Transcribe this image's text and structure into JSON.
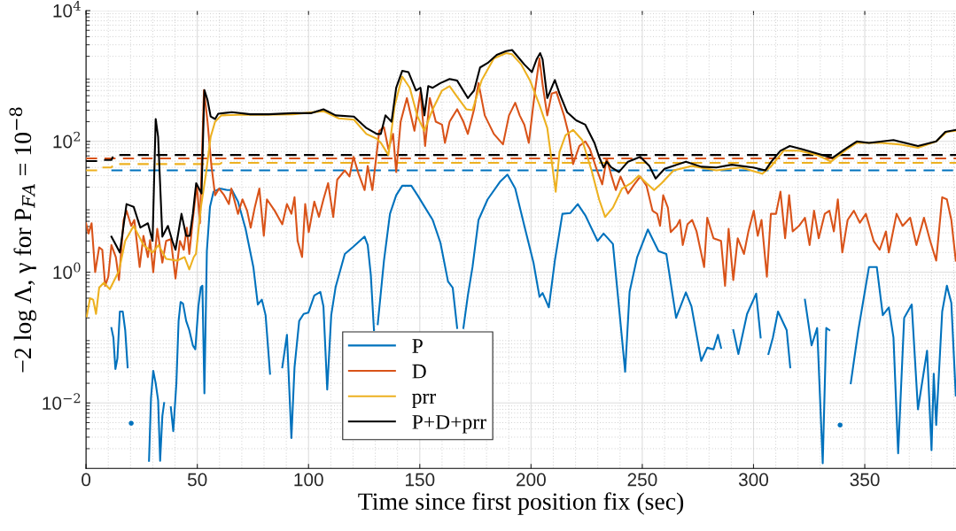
{
  "chart_data": {
    "type": "line",
    "xlabel": "Time since first position fix (sec)",
    "ylabel": "−2 log Λ, γ for P$_{FA}$ = 10$^{−8}$",
    "log": "y",
    "grid": true,
    "legend": "bottom left",
    "line_style": "solid",
    "marker": "none",
    "xlim": [
      0,
      391
    ],
    "xticks": [
      0,
      50,
      100,
      150,
      200,
      250,
      300,
      350
    ],
    "ylim": [
      0.001,
      10000
    ],
    "yticks": [
      {
        "value": 0.01,
        "label": "10$^{−2}$"
      },
      {
        "value": 1,
        "label": "10$^{0}$"
      },
      {
        "value": 100,
        "label": "10$^{2}$"
      },
      {
        "value": 10000,
        "label": "10$^{4}$"
      }
    ],
    "series": [
      {
        "name": "P",
        "color": "#0072bd",
        "x": [
          11.4,
          12.3,
          13.2,
          14.1,
          15.2,
          16.5,
          17.6,
          18.7,
          19.3,
          20.3,
          21.3,
          28.3,
          29.2,
          30.2,
          31.3,
          32.4,
          33.3,
          34.3,
          35.1,
          36.1,
          36.8,
          38.1,
          39.2,
          40.6,
          41.6,
          42.5,
          43.6,
          45,
          46.4,
          48,
          49.1,
          50.5,
          51.6,
          52.3,
          53.2,
          54.3,
          55.7,
          57.3,
          60.1,
          63.5,
          65.6,
          68.3,
          71.7,
          75.2,
          77.2,
          79,
          80.7,
          82.7,
          84.8,
          86.1,
          88.2,
          90.3,
          92.3,
          93.7,
          95.8,
          97.8,
          99.9,
          102.6,
          105.3,
          106.7,
          108.4,
          110.2,
          112.2,
          116.3,
          119.8,
          125.2,
          126.6,
          128,
          129.4,
          130.5,
          131.1,
          133.9,
          136.6,
          139.4,
          142.1,
          146.2,
          149,
          152.4,
          155.8,
          159.3,
          162.7,
          164.8,
          166.8,
          168.2,
          169.6,
          171.6,
          173.7,
          176.4,
          180.5,
          186,
          189.4,
          192.9,
          197,
          201.1,
          203.8,
          205.2,
          208,
          210.7,
          214.1,
          217.6,
          221,
          224.4,
          229.9,
          232.6,
          236.8,
          239.5,
          242.3,
          244.3,
          247.7,
          252.5,
          257.3,
          260.8,
          265.2,
          269.6,
          272.1,
          276.5,
          279.2,
          282,
          284,
          285.4,
          287.7,
          289.5,
          290.9,
          293.2,
          297.1,
          301.2,
          303.2,
          305,
          306.7,
          308.7,
          311,
          314.9,
          316.5,
          318.3,
          320.4,
          323.1,
          326.1,
          328.6,
          331.1,
          332.7,
          334.1,
          336.8,
          338.9,
          341.6,
          343.7,
          347.1,
          351.9,
          355.4,
          358.1,
          360.8,
          362.9,
          365,
          367.7,
          371.1,
          373.9,
          378,
          380,
          381,
          382.1,
          384.8,
          386.9,
          388.9,
          390.9
        ],
        "values": [
          0.14,
          0.1,
          0.033,
          0.048,
          0.25,
          0.25,
          0.13,
          0.035,
          null,
          0.0049,
          null,
          0.0013,
          0.012,
          0.031,
          0.02,
          0.011,
          0.0013,
          0.0063,
          0.01,
          null,
          null,
          0.0086,
          0.0037,
          0.02,
          0.18,
          0.35,
          0.33,
          0.18,
          0.13,
          0.076,
          0.066,
          0.3,
          0.59,
          0.62,
          0.014,
          2.1,
          10,
          17,
          19,
          18,
          18,
          12,
          4.6,
          1.2,
          0.32,
          0.38,
          0.22,
          0.028,
          null,
          null,
          0.035,
          0.11,
          0.0029,
          0.035,
          0.18,
          0.23,
          0.24,
          0.44,
          0.5,
          0.3,
          0.016,
          0.22,
          0.6,
          1.9,
          2.4,
          3.5,
          2.6,
          0.9,
          0.13,
          null,
          0.16,
          1.5,
          7.8,
          15,
          21,
          21,
          15,
          9.7,
          6.3,
          2.8,
          0.72,
          0.58,
          0.14,
          null,
          0.14,
          0.44,
          1.2,
          6.3,
          13,
          24,
          31,
          19,
          5.1,
          1.4,
          0.42,
          0.48,
          0.29,
          1.5,
          7.8,
          8,
          11,
          7.4,
          3,
          3.9,
          2.7,
          0.3,
          0.03,
          0.5,
          1.7,
          4.5,
          2.1,
          1.9,
          0.2,
          0.49,
          0.3,
          0.044,
          0.07,
          0.066,
          0.11,
          0.07,
          null,
          null,
          0.13,
          0.056,
          0.23,
          0.47,
          0.1,
          null,
          0.056,
          0.1,
          0.25,
          0.13,
          0.035,
          null,
          null,
          0.38,
          0.076,
          0.14,
          0.0012,
          0.14,
          0.13,
          null,
          0.0046,
          null,
          0.02,
          0.13,
          1.2,
          1.2,
          0.22,
          0.29,
          0.1,
          0.0017,
          0.2,
          0.32,
          0.008,
          0.063,
          0.0019,
          0.028,
          0.0046,
          0.25,
          0.62,
          0.34,
          0.013
        ]
      },
      {
        "name": "D",
        "color": "#d95319",
        "x": [
          0,
          1.1,
          2.5,
          4.1,
          5.9,
          7.3,
          8.6,
          10,
          11.4,
          13.4,
          14.8,
          16.9,
          18.2,
          20.3,
          21.7,
          24.1,
          25.8,
          27.8,
          28.8,
          30.2,
          32,
          34.3,
          36,
          38.1,
          40.2,
          42.2,
          43.9,
          45.3,
          46.4,
          48,
          49.8,
          51.2,
          53,
          54.6,
          56.3,
          58,
          59.8,
          62.1,
          64.2,
          65.3,
          68.3,
          70.3,
          72.4,
          74,
          75.9,
          77.9,
          79.9,
          81.3,
          84.8,
          88.2,
          90.3,
          92.3,
          93.7,
          95.1,
          97.1,
          98.5,
          100.1,
          102.6,
          104.7,
          106.7,
          108.8,
          111.1,
          112.9,
          116.3,
          118.4,
          120.2,
          122.5,
          125.2,
          126.6,
          128.7,
          131.8,
          133.9,
          135.9,
          138,
          139.4,
          141.4,
          144.2,
          147.6,
          150.3,
          152.4,
          154.5,
          157.2,
          160,
          161.3,
          163.4,
          166.8,
          169.6,
          171.6,
          174.4,
          176.4,
          179.2,
          183.3,
          187.4,
          190.1,
          192.9,
          194.9,
          197,
          199,
          201.8,
          203.8,
          205.2,
          207.3,
          209.3,
          211.4,
          214.8,
          216.9,
          218.9,
          221.7,
          224.4,
          226.5,
          229.2,
          232,
          234,
          236.1,
          238.1,
          240.2,
          243.6,
          246.4,
          249.1,
          251.9,
          254.6,
          256.7,
          258,
          259.4,
          261.5,
          262.8,
          265.5,
          266.9,
          268.2,
          270.3,
          272.4,
          274.4,
          277.8,
          279.2,
          282,
          285.4,
          287.2,
          288.8,
          290.9,
          292.9,
          295.7,
          297.7,
          300.1,
          301.9,
          303.6,
          306,
          307.8,
          310.1,
          312.1,
          314.2,
          316,
          317.6,
          320.4,
          323.1,
          325.2,
          327.2,
          329.3,
          332,
          334.1,
          336.1,
          337.9,
          339.9,
          342.3,
          345.1,
          347.8,
          350.5,
          354,
          356.7,
          359.5,
          360.8,
          364.3,
          367,
          370.4,
          373.2,
          376.6,
          379.4,
          382.1,
          384.8,
          386.9,
          388.9,
          390.9
        ],
        "values": [
          5.6,
          3.9,
          5.6,
          1,
          2.4,
          2.2,
          0.62,
          0.85,
          2.6,
          1.7,
          0.76,
          6.3,
          8.7,
          5.1,
          6.3,
          1.2,
          3.6,
          1.7,
          3.1,
          1,
          4.6,
          1.4,
          3,
          3.2,
          0.8,
          3,
          2.2,
          4.8,
          1.9,
          6.3,
          22,
          5.6,
          610,
          200,
          44,
          15,
          19,
          15,
          11,
          19,
          7.8,
          13,
          8.7,
          4.8,
          10,
          19,
          3.6,
          13,
          8.7,
          5.4,
          11,
          7.8,
          14,
          3,
          1.7,
          11,
          4.1,
          12,
          7,
          13,
          23,
          7,
          26,
          36,
          29,
          58,
          32,
          18,
          42,
          18,
          145,
          165,
          76,
          130,
          34,
          200,
          460,
          145,
          570,
          85,
          460,
          200,
          180,
          95,
          200,
          310,
          200,
          130,
          310,
          780,
          250,
          130,
          90,
          250,
          390,
          250,
          180,
          95,
          600,
          1860,
          740,
          250,
          540,
          570,
          250,
          130,
          45,
          85,
          100,
          76,
          40,
          22,
          55,
          30,
          18,
          29,
          16,
          22,
          29,
          21,
          8.7,
          7.8,
          5.1,
          15,
          9.7,
          4.1,
          5.1,
          6.3,
          2.6,
          5.4,
          6.3,
          4.2,
          1.2,
          6.8,
          3.3,
          3,
          0.62,
          4.6,
          0.76,
          3.3,
          1.9,
          4.2,
          8.7,
          3.6,
          6.3,
          0.85,
          7.8,
          7.8,
          17,
          3.3,
          15,
          4.2,
          5.1,
          6.8,
          2.6,
          8.7,
          3.3,
          7.8,
          8.7,
          4.2,
          13,
          2,
          6.3,
          8.7,
          5.7,
          7.8,
          3,
          2.2,
          4.2,
          2,
          7.8,
          5.1,
          6.8,
          2.6,
          6.8,
          3,
          1.5,
          14,
          13,
          6.3,
          1.5
        ]
      },
      {
        "name": "prr",
        "color": "#edb120",
        "x": [
          0.3,
          1.8,
          3.2,
          4.5,
          5.9,
          8,
          10.7,
          14.8,
          17.6,
          21.4,
          25.8,
          29.9,
          32.6,
          36,
          40.9,
          44.3,
          46.4,
          48.4,
          49.4,
          51.6,
          53.9,
          56,
          58,
          60.8,
          68.3,
          79.3,
          93,
          106.7,
          113.6,
          120.4,
          126,
          130.7,
          132.5,
          135.9,
          138.7,
          142.1,
          145.5,
          149,
          152,
          155.8,
          160,
          163.4,
          166.8,
          170.9,
          173.7,
          177.8,
          183.3,
          188.8,
          191.5,
          195.6,
          199.7,
          203.8,
          207.3,
          209.3,
          211.1,
          212.8,
          215.5,
          218.9,
          223,
          227.2,
          230.6,
          233.3,
          236.8,
          240.9,
          245,
          248.4,
          251.9,
          255.3,
          258.7,
          264.1,
          272.4,
          283.3,
          294.3,
          303.9,
          308,
          313.5,
          320.4,
          328.6,
          334.8,
          341,
          346.4,
          357.4,
          365.6,
          373.9,
          382.1,
          386.9,
          390.9
        ],
        "values": [
          0.21,
          0.4,
          0.38,
          0.23,
          0.58,
          0.69,
          0.55,
          1.05,
          3,
          5.1,
          2.6,
          2,
          2.6,
          1.6,
          1.5,
          1.7,
          1.1,
          1.7,
          1.9,
          9.7,
          32,
          117,
          200,
          250,
          255,
          255,
          260,
          290,
          225,
          215,
          130,
          110,
          95,
          62,
          350,
          980,
          660,
          240,
          145,
          310,
          600,
          700,
          480,
          310,
          300,
          860,
          1860,
          2240,
          2150,
          1500,
          830,
          360,
          160,
          49,
          17,
          69,
          124,
          150,
          105,
          36,
          13,
          7,
          9.7,
          19,
          23,
          30,
          23,
          18,
          23,
          36,
          42,
          36,
          40,
          32,
          42,
          72,
          72,
          62,
          49,
          72,
          95,
          95,
          90,
          80,
          100,
          140,
          145
        ]
      },
      {
        "name": "P+D+prr",
        "color": "#000000",
        "x": [
          11.4,
          13.2,
          15.2,
          18.2,
          21.4,
          24.4,
          27.8,
          29.9,
          31.3,
          32.4,
          34.3,
          36.8,
          38.8,
          40.2,
          42.9,
          45,
          46.6,
          48,
          49.5,
          51.9,
          53.2,
          54.6,
          56,
          58,
          59.4,
          65.6,
          73.8,
          82,
          93,
          101,
          106.7,
          112.2,
          120.4,
          126,
          130.7,
          132.5,
          134.6,
          137.3,
          139.4,
          142.1,
          144.9,
          148.3,
          150.3,
          152.1,
          153.8,
          155.8,
          159.3,
          163.4,
          166.8,
          171.6,
          174.4,
          177.1,
          180.5,
          184.6,
          188.8,
          191.5,
          194.2,
          197,
          200.4,
          202.5,
          204.1,
          205.2,
          207.3,
          210.7,
          212.8,
          216.2,
          220.3,
          224.4,
          228.5,
          230.6,
          232.6,
          234,
          236.1,
          239.5,
          243.6,
          249.1,
          253.2,
          256,
          260,
          269.6,
          276.5,
          283.3,
          290.2,
          299.8,
          305.3,
          308,
          312.1,
          316.3,
          321.7,
          328.6,
          335.5,
          341,
          346.4,
          351.9,
          362.9,
          373.9,
          382.1,
          386.2,
          390.9
        ],
        "values": [
          3.5,
          2.7,
          2,
          11,
          10,
          4.8,
          5.6,
          3,
          220,
          117,
          3.5,
          5.1,
          3,
          2.2,
          7.8,
          3.6,
          3.6,
          7.8,
          23,
          16,
          610,
          430,
          240,
          220,
          265,
          280,
          260,
          260,
          270,
          270,
          310,
          250,
          240,
          160,
          130,
          130,
          250,
          200,
          660,
          1200,
          1150,
          600,
          660,
          250,
          700,
          660,
          780,
          900,
          850,
          460,
          600,
          1350,
          1580,
          2100,
          2400,
          2500,
          1950,
          1500,
          1150,
          1800,
          2240,
          1800,
          460,
          870,
          540,
          280,
          210,
          180,
          95,
          58,
          40,
          49,
          40,
          34,
          49,
          58,
          42,
          27,
          38,
          49,
          41,
          40,
          44,
          40,
          36,
          49,
          72,
          85,
          76,
          65,
          56,
          76,
          100,
          95,
          105,
          85,
          100,
          140,
          150
        ]
      },
      {
        "color": "#0072bd",
        "line_style": "dashed",
        "x": [
          11.4,
          391
        ],
        "values": [
          36,
          36
        ]
      },
      {
        "color": "#d95319",
        "line_style": "dashed",
        "x": [
          0,
          391
        ],
        "values": [
          55,
          55
        ]
      },
      {
        "color": "#edb120",
        "line_style": "dashed",
        "x": [
          0,
          5,
          5.5,
          11.4,
          12.5,
          60,
          61,
          391
        ],
        "values": [
          36,
          36,
          40,
          40,
          45,
          45,
          47,
          47
        ]
      },
      {
        "color": "#000000",
        "line_style": "dashed",
        "x": [
          0,
          5,
          5.5,
          11.4,
          12.5,
          391
        ],
        "values": [
          50,
          50,
          52,
          52,
          62,
          62
        ]
      }
    ]
  }
}
